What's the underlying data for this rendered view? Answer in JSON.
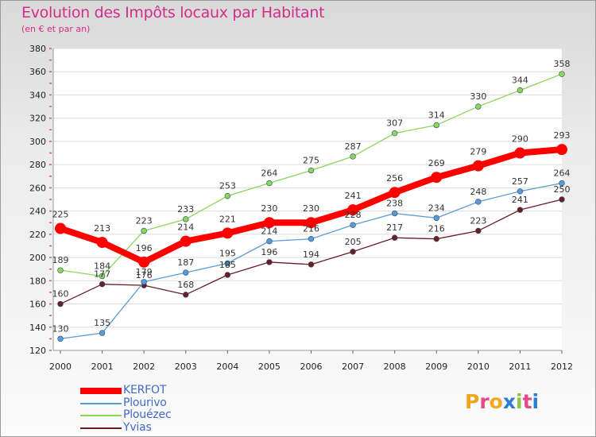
{
  "header": {
    "title": "Evolution des Impôts locaux par Habitant",
    "subtitle": "(en € et par an)"
  },
  "brand": {
    "logo_text": "Proxiti",
    "logo_colors": [
      "#f2a41c",
      "#e34a8a",
      "#f5a623",
      "#2b7fd4",
      "#8bc34a",
      "#e34a8a",
      "#2b7fd4"
    ]
  },
  "chart_data": {
    "type": "line",
    "title": "Evolution des Impôts locaux par Habitant",
    "subtitle": "(en € et par an)",
    "xlabel": "",
    "ylabel": "",
    "ylim": [
      120,
      380
    ],
    "yticks": [
      120,
      140,
      160,
      180,
      200,
      220,
      240,
      260,
      280,
      300,
      320,
      340,
      360,
      380
    ],
    "x": [
      "2000",
      "2001",
      "2002",
      "2003",
      "2004",
      "2005",
      "2006",
      "2007",
      "2008",
      "2009",
      "2010",
      "2011",
      "2012"
    ],
    "grid": "horizontal",
    "legend_position": "bottom-left",
    "series": [
      {
        "name": "Yvias",
        "color": "#6b1f22",
        "values": [
          160,
          177,
          176,
          168,
          185,
          196,
          194,
          205,
          217,
          216,
          223,
          241,
          250
        ]
      },
      {
        "name": "Plourivo",
        "color": "#5b9bd5",
        "values": [
          130,
          135,
          179,
          187,
          195,
          214,
          216,
          228,
          238,
          234,
          248,
          257,
          264
        ]
      },
      {
        "name": "Plouézec",
        "color": "#8cd65a",
        "values": [
          189,
          184,
          223,
          233,
          253,
          264,
          275,
          287,
          307,
          314,
          330,
          344,
          358
        ]
      },
      {
        "name": "KERFOT",
        "color": "#ff0000",
        "values": [
          225,
          213,
          196,
          214,
          221,
          230,
          230,
          241,
          256,
          269,
          279,
          290,
          293
        ],
        "highlight": true
      }
    ]
  }
}
